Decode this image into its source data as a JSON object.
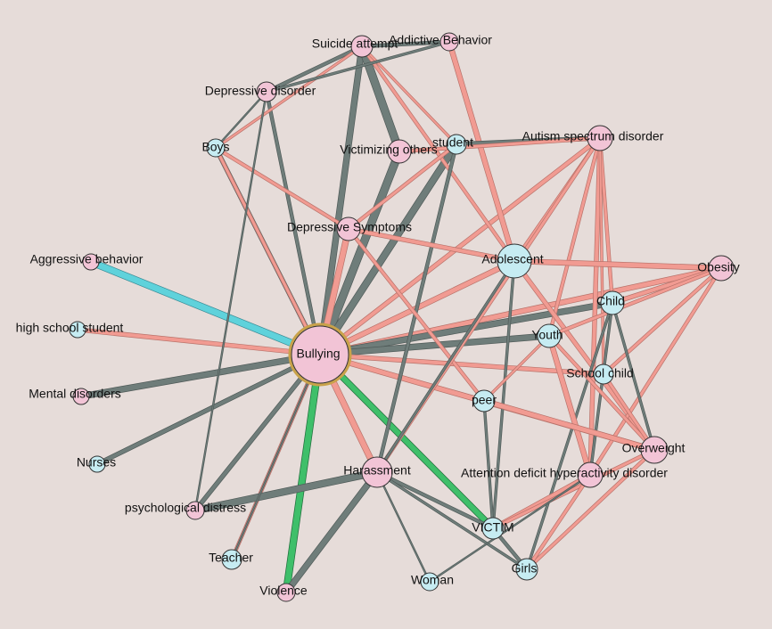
{
  "nodes": [
    {
      "label": "Bullying"
    },
    {
      "label": "Suicide attempt"
    },
    {
      "label": "Addictive Behavior"
    },
    {
      "label": "Depressive disorder"
    },
    {
      "label": "Boys"
    },
    {
      "label": "Victimizing others"
    },
    {
      "label": "student"
    },
    {
      "label": "Autism spectrum disorder"
    },
    {
      "label": "Depressive Symptoms"
    },
    {
      "label": "Aggressive behavior"
    },
    {
      "label": "Adolescent"
    },
    {
      "label": "Obesity"
    },
    {
      "label": "Child"
    },
    {
      "label": "high school student"
    },
    {
      "label": "Youth"
    },
    {
      "label": "School child"
    },
    {
      "label": "Mental disorders"
    },
    {
      "label": "peer"
    },
    {
      "label": "Overweight"
    },
    {
      "label": "Nurses"
    },
    {
      "label": "Harassment"
    },
    {
      "label": "Attention deficit hyperactivity disorder"
    },
    {
      "label": "psychological distress"
    },
    {
      "label": "VICTIM"
    },
    {
      "label": "Teacher"
    },
    {
      "label": "Girls"
    },
    {
      "label": "Woman"
    },
    {
      "label": "Violence"
    }
  ]
}
